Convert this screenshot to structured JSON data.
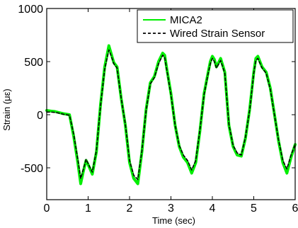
{
  "chart_data": {
    "type": "line",
    "title": "",
    "xlabel": "Time (sec)",
    "ylabel": "Strain (με)",
    "xlim": [
      0,
      6
    ],
    "ylim": [
      -800,
      1000
    ],
    "x_ticks": [
      0,
      1,
      2,
      3,
      4,
      5,
      6
    ],
    "y_ticks": [
      -500,
      0,
      500,
      1000
    ],
    "x_tick_labels": [
      "0",
      "1",
      "2",
      "3",
      "4",
      "5",
      "6"
    ],
    "y_tick_labels": [
      "-500",
      "0",
      "500",
      "1000"
    ],
    "grid": false,
    "legend_position": "top-right",
    "series": [
      {
        "name": "MICA2",
        "color": "#00ee00",
        "style": "solid",
        "x": [
          0,
          0.1,
          0.2,
          0.3,
          0.4,
          0.55,
          0.65,
          0.75,
          0.82,
          0.88,
          0.95,
          1.0,
          1.1,
          1.2,
          1.3,
          1.4,
          1.5,
          1.56,
          1.62,
          1.7,
          1.8,
          1.9,
          2.0,
          2.1,
          2.2,
          2.3,
          2.4,
          2.5,
          2.6,
          2.7,
          2.8,
          2.85,
          2.9,
          3.0,
          3.1,
          3.2,
          3.3,
          3.4,
          3.5,
          3.6,
          3.7,
          3.8,
          3.9,
          3.95,
          4.0,
          4.05,
          4.1,
          4.2,
          4.3,
          4.4,
          4.5,
          4.6,
          4.7,
          4.8,
          4.9,
          5.0,
          5.05,
          5.1,
          5.2,
          5.3,
          5.4,
          5.5,
          5.6,
          5.7,
          5.8,
          5.9,
          6.0
        ],
        "values": [
          40,
          35,
          30,
          20,
          10,
          0,
          -200,
          -450,
          -650,
          -540,
          -430,
          -470,
          -560,
          -350,
          100,
          450,
          650,
          570,
          490,
          450,
          150,
          -100,
          -450,
          -600,
          -650,
          -350,
          50,
          300,
          360,
          500,
          580,
          560,
          430,
          200,
          -100,
          -300,
          -400,
          -450,
          -550,
          -450,
          -150,
          200,
          400,
          500,
          550,
          520,
          450,
          530,
          400,
          -100,
          -300,
          -380,
          -390,
          -220,
          50,
          400,
          530,
          550,
          450,
          400,
          250,
          0,
          -250,
          -450,
          -550,
          -400,
          -280
        ]
      },
      {
        "name": "Wired Strain Sensor",
        "color": "#000000",
        "style": "dashed",
        "x": [
          0,
          0.1,
          0.2,
          0.3,
          0.4,
          0.55,
          0.65,
          0.75,
          0.82,
          0.88,
          0.95,
          1.0,
          1.1,
          1.2,
          1.3,
          1.4,
          1.5,
          1.56,
          1.62,
          1.7,
          1.8,
          1.9,
          2.0,
          2.1,
          2.2,
          2.3,
          2.4,
          2.5,
          2.6,
          2.7,
          2.8,
          2.85,
          2.9,
          3.0,
          3.1,
          3.2,
          3.3,
          3.4,
          3.5,
          3.6,
          3.7,
          3.8,
          3.9,
          3.95,
          4.0,
          4.05,
          4.1,
          4.2,
          4.3,
          4.4,
          4.5,
          4.6,
          4.7,
          4.8,
          4.9,
          5.0,
          5.05,
          5.1,
          5.2,
          5.3,
          5.4,
          5.5,
          5.6,
          5.7,
          5.8,
          5.9,
          6.0
        ],
        "values": [
          25,
          25,
          22,
          15,
          5,
          -5,
          -180,
          -420,
          -600,
          -520,
          -420,
          -460,
          -540,
          -340,
          90,
          430,
          610,
          550,
          480,
          440,
          150,
          -90,
          -430,
          -570,
          -610,
          -340,
          40,
          290,
          350,
          480,
          560,
          540,
          420,
          190,
          -100,
          -290,
          -380,
          -430,
          -520,
          -430,
          -140,
          190,
          390,
          480,
          530,
          500,
          440,
          510,
          390,
          -90,
          -290,
          -360,
          -380,
          -210,
          40,
          390,
          510,
          530,
          440,
          390,
          240,
          -5,
          -240,
          -430,
          -510,
          -380,
          -280
        ]
      }
    ]
  }
}
